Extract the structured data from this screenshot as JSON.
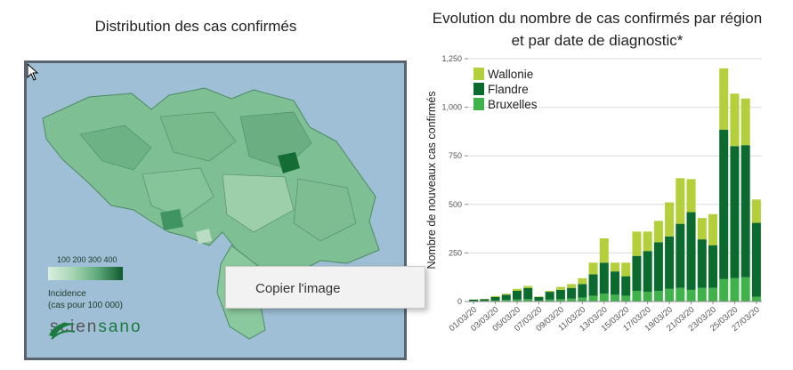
{
  "left": {
    "title": "Distribution des cas confirmés",
    "legend": {
      "ticks": "100 200 300 400",
      "title_line1": "Incidence",
      "title_line2": "(cas pour 100 000)"
    },
    "logo": {
      "part1": "scien",
      "part2": "sano"
    }
  },
  "context_menu": {
    "item": "Copier l'image"
  },
  "icons": {
    "cursor": "arrow-cursor-icon",
    "logo": "sciensano-logo-icon"
  },
  "right": {
    "title_line1": "Evolution du nombre de cas confirmés par région",
    "title_line2": "et par date de diagnostic*"
  },
  "chart_data": {
    "type": "bar",
    "stacked": true,
    "title": "Evolution du nombre de cas confirmés par région et par date de diagnostic*",
    "ylabel": "Nombre de nouveaux cas confirmés",
    "ylim": [
      0,
      1250
    ],
    "yticks": [
      0,
      250,
      500,
      750,
      1000,
      1250
    ],
    "x_tick_labels": [
      "01/03/20",
      "03/03/20",
      "05/03/20",
      "07/03/20",
      "09/03/20",
      "11/03/20",
      "13/03/20",
      "15/03/20",
      "17/03/20",
      "19/03/20",
      "21/03/20",
      "23/03/20",
      "25/03/20",
      "27/03/20"
    ],
    "legend": [
      "Wallonie",
      "Flandre",
      "Bruxelles"
    ],
    "legend_position": "top-left",
    "colors": {
      "Wallonie": "#b3cf3a",
      "Flandre": "#0b6b2e",
      "Bruxelles": "#3fb24a"
    },
    "categories": [
      "01/03",
      "02/03",
      "03/03",
      "04/03",
      "05/03",
      "06/03",
      "07/03",
      "08/03",
      "09/03",
      "10/03",
      "11/03",
      "12/03",
      "13/03",
      "14/03",
      "15/03",
      "16/03",
      "17/03",
      "18/03",
      "19/03",
      "20/03",
      "21/03",
      "22/03",
      "23/03",
      "24/03",
      "25/03",
      "26/03",
      "27/03"
    ],
    "series": [
      {
        "name": "Bruxelles",
        "values": [
          2,
          3,
          5,
          8,
          10,
          12,
          5,
          10,
          12,
          15,
          20,
          30,
          40,
          35,
          30,
          55,
          50,
          55,
          65,
          70,
          60,
          70,
          70,
          115,
          120,
          125,
          25
        ]
      },
      {
        "name": "Flandre",
        "values": [
          8,
          9,
          18,
          27,
          45,
          58,
          18,
          40,
          48,
          55,
          70,
          110,
          160,
          120,
          100,
          180,
          210,
          250,
          270,
          330,
          400,
          250,
          220,
          770,
          680,
          680,
          380
        ]
      },
      {
        "name": "Wallonie",
        "values": [
          1,
          2,
          5,
          5,
          10,
          10,
          3,
          5,
          15,
          20,
          30,
          60,
          125,
          45,
          70,
          125,
          100,
          110,
          175,
          235,
          170,
          110,
          160,
          315,
          270,
          240,
          120
        ]
      }
    ]
  }
}
